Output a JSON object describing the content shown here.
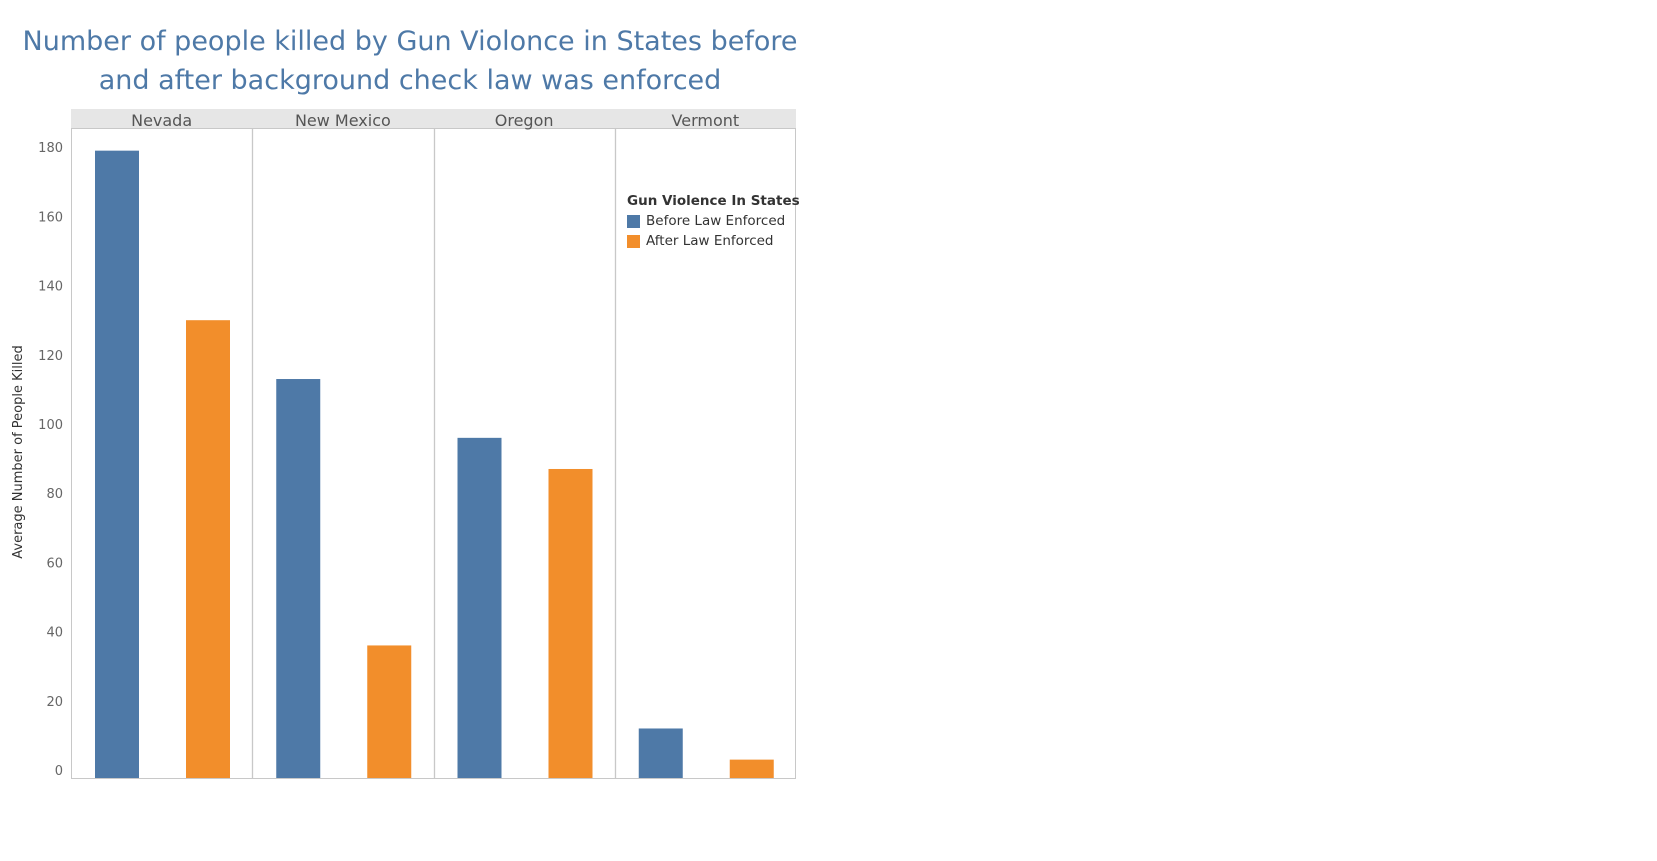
{
  "colors": {
    "title": "#4e79a7",
    "before": "#4e79a7",
    "after": "#f28e2b",
    "header_bg": "#e6e6e6",
    "axis_text": "#666666",
    "border": "#c8c8c8"
  },
  "chart_data": {
    "type": "bar",
    "title_lines": [
      "Number of people killed by Gun Violonce in States before",
      "and after background check law was enforced"
    ],
    "xlabel": "",
    "ylabel": "Average Number of People Killed",
    "ylim": [
      0,
      185
    ],
    "yticks": [
      0,
      20,
      40,
      60,
      80,
      100,
      120,
      140,
      160,
      180
    ],
    "grid": false,
    "legend_position": "top-right",
    "legend_title": "Gun Violence In States",
    "categories": [
      "Nevada",
      "New Mexico",
      "Oregon",
      "Vermont"
    ],
    "series": [
      {
        "name": "Before Law Enforced",
        "values": [
          179,
          113,
          96,
          12
        ]
      },
      {
        "name": "After Law Enforced",
        "values": [
          130,
          36,
          87,
          3
        ]
      }
    ]
  }
}
